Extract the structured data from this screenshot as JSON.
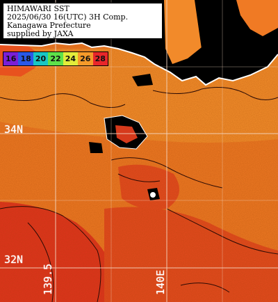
{
  "header": {
    "line1": "HIMAWARI SST",
    "line2": "2025/06/30 16(UTC) 3H Comp.",
    "line3": "Kanagawa Prefecture",
    "line4": "supplied by JAXA"
  },
  "colorbar": {
    "ticks": [
      "16",
      "18",
      "20",
      "22",
      "24",
      "26",
      "28"
    ],
    "colors": [
      "#7a1fd6",
      "#2a58e8",
      "#18c6c4",
      "#5ee04a",
      "#e2ec3a",
      "#f59a2a",
      "#e8262a"
    ]
  },
  "grid_labels": {
    "lat_34": "34N",
    "lat_32": "32N",
    "lon_1395": "139.5",
    "lon_140": "140E"
  },
  "colors": {
    "land": "#000000",
    "coast": "#ffffff",
    "sea_warm": "#f0641e",
    "sea_hot": "#e0281c",
    "sea_mild": "#f58a26",
    "grid": "#f3d6c2"
  }
}
